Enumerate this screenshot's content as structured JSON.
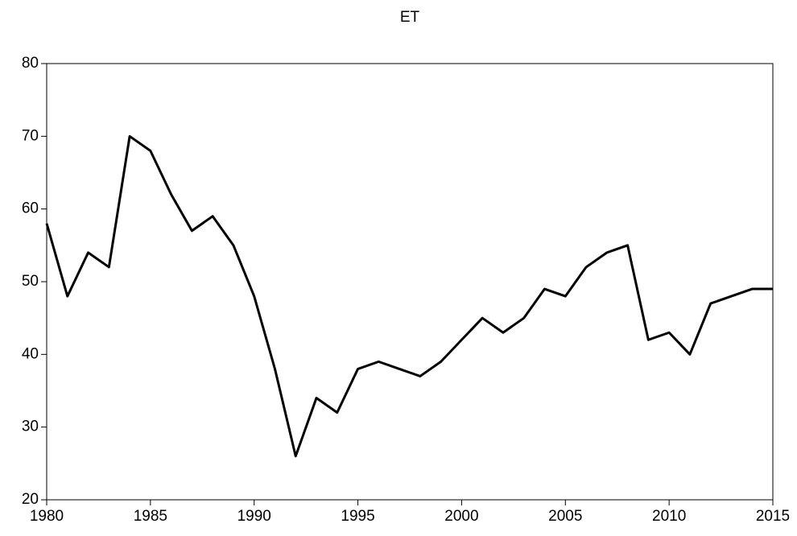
{
  "chart_data": {
    "type": "line",
    "title": "ET",
    "x": [
      1980,
      1981,
      1982,
      1983,
      1984,
      1985,
      1986,
      1987,
      1988,
      1989,
      1990,
      1991,
      1992,
      1993,
      1994,
      1995,
      1996,
      1997,
      1998,
      1999,
      2000,
      2001,
      2002,
      2003,
      2004,
      2005,
      2006,
      2007,
      2008,
      2009,
      2010,
      2011,
      2012,
      2013,
      2014,
      2015
    ],
    "series": [
      {
        "name": "ET",
        "color": "#000000",
        "values": [
          58,
          48,
          54,
          52,
          70,
          68,
          62,
          57,
          59,
          55,
          48,
          38,
          26,
          34,
          32,
          38,
          39,
          38,
          37,
          39,
          42,
          45,
          43,
          45,
          49,
          48,
          52,
          54,
          55,
          42,
          43,
          40,
          47,
          48,
          49,
          49
        ]
      }
    ],
    "xlim": [
      1980,
      2015
    ],
    "xticks": [
      1980,
      1985,
      1990,
      1995,
      2000,
      2005,
      2010,
      2015
    ],
    "ylim": [
      20,
      80
    ],
    "yticks": [
      20,
      30,
      40,
      50,
      60,
      70,
      80
    ],
    "grid": false
  }
}
